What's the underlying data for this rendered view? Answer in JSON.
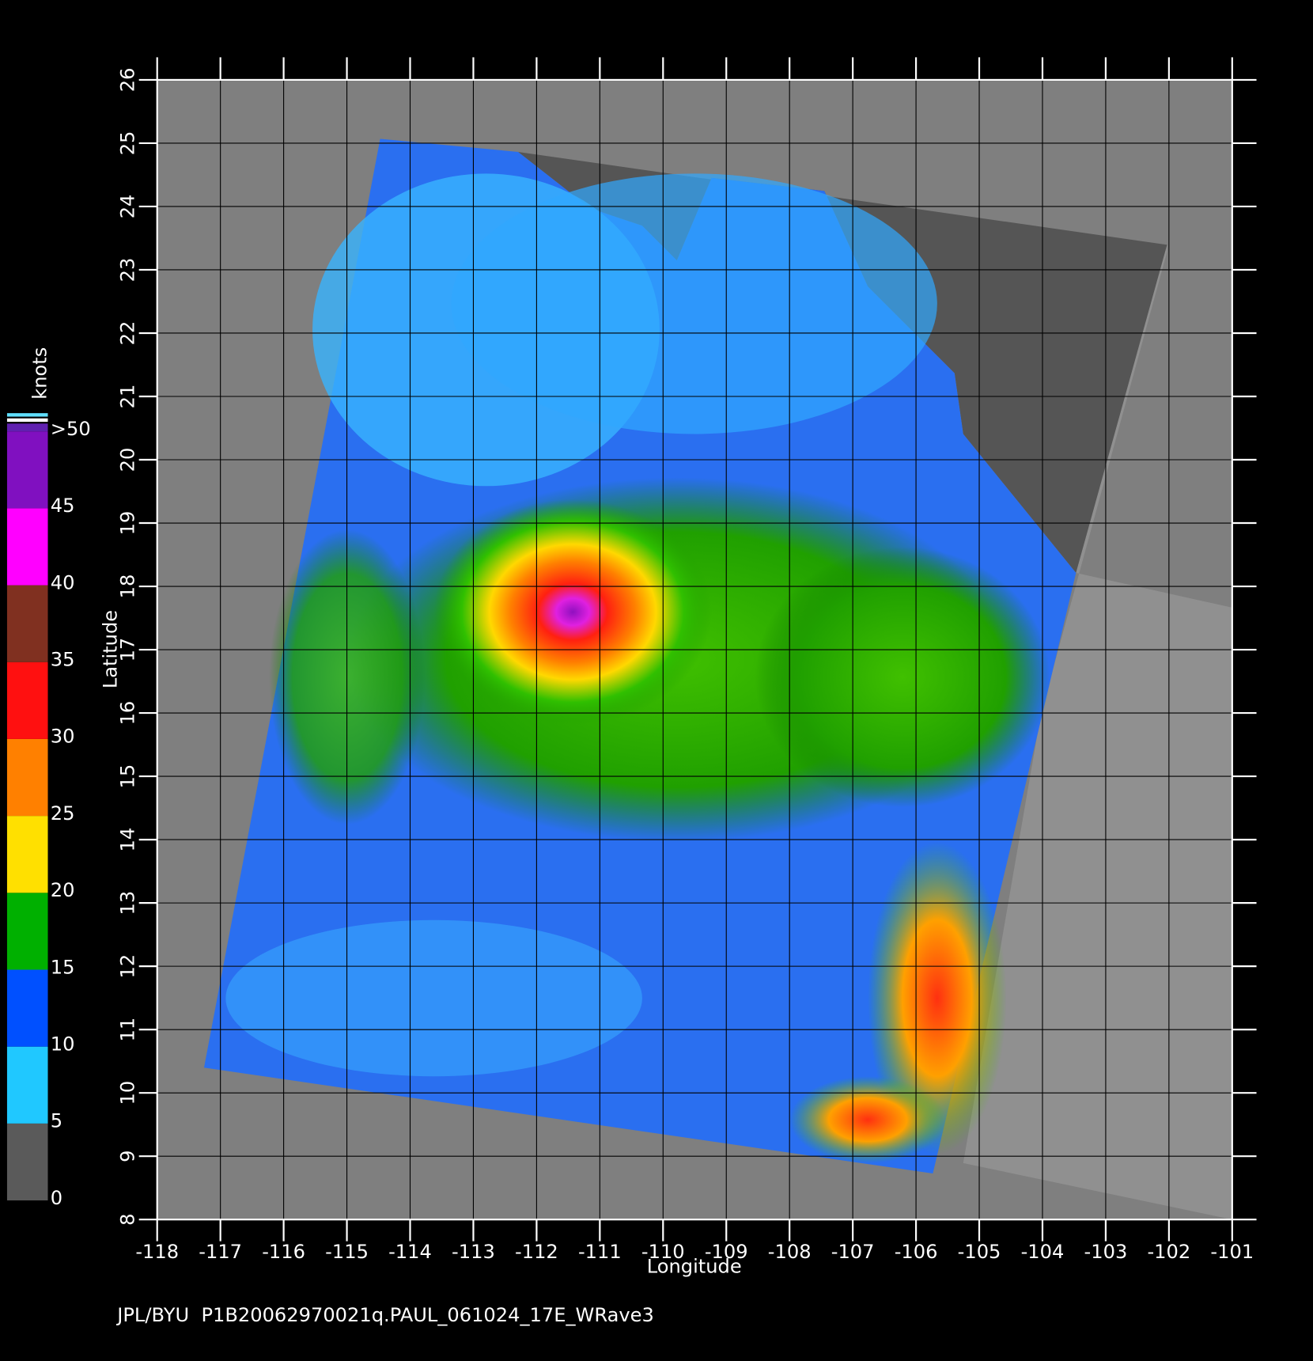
{
  "footer": "JPL/BYU  P1B20062970021q.PAUL_061024_17E_WRave3",
  "x_axis": {
    "label": "Longitude",
    "lim": [
      -118,
      -101
    ],
    "ticks": [
      -118,
      -117,
      -116,
      -115,
      -114,
      -113,
      -112,
      -111,
      -110,
      -109,
      -108,
      -107,
      -106,
      -105,
      -104,
      -103,
      -102,
      -101
    ]
  },
  "y_axis": {
    "label": "Latitude",
    "lim": [
      8,
      26
    ],
    "ticks": [
      8,
      9,
      10,
      11,
      12,
      13,
      14,
      15,
      16,
      17,
      18,
      19,
      20,
      21,
      22,
      23,
      24,
      25,
      26
    ]
  },
  "colorbar": {
    "label": "knots",
    "ticks": [
      0,
      5,
      10,
      15,
      20,
      25,
      30,
      35,
      40,
      45,
      {
        "value": 50,
        "label": ">50"
      }
    ],
    "colors": [
      "#5a5a5a",
      "#20c8ff",
      "#0050ff",
      "#00b000",
      "#ffe000",
      "#ff8000",
      "#ff1010",
      "#803020",
      "#ff00ff",
      "#8010c0"
    ]
  }
}
